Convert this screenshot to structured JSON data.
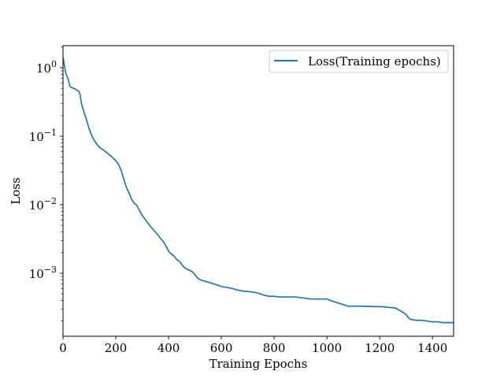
{
  "chart_data": {
    "type": "line",
    "title": "",
    "xlabel": "Training Epochs",
    "ylabel": "Loss",
    "xlim": [
      0,
      1480
    ],
    "ylim": [
      0.00012,
      2.1
    ],
    "yscale": "log",
    "grid": false,
    "legend_position": "top-right",
    "x_ticks": [
      {
        "value": 0,
        "label": "0"
      },
      {
        "value": 200,
        "label": "200"
      },
      {
        "value": 400,
        "label": "400"
      },
      {
        "value": 600,
        "label": "600"
      },
      {
        "value": 800,
        "label": "800"
      },
      {
        "value": 1000,
        "label": "1000"
      },
      {
        "value": 1200,
        "label": "1200"
      },
      {
        "value": 1400,
        "label": "1400"
      }
    ],
    "y_ticks": [
      {
        "value": 1,
        "base": "10",
        "exp": "0"
      },
      {
        "value": 0.1,
        "base": "10",
        "exp": "−1"
      },
      {
        "value": 0.01,
        "base": "10",
        "exp": "−2"
      },
      {
        "value": 0.001,
        "base": "10",
        "exp": "−3"
      }
    ],
    "series": [
      {
        "name": "Loss(Training epochs)",
        "color": "#1f77b4",
        "x": [
          0,
          5,
          10,
          15,
          20,
          25,
          30,
          40,
          50,
          60,
          65,
          70,
          80,
          90,
          100,
          110,
          120,
          130,
          140,
          150,
          160,
          170,
          180,
          190,
          200,
          210,
          220,
          230,
          240,
          250,
          260,
          270,
          280,
          290,
          300,
          310,
          320,
          330,
          340,
          350,
          360,
          370,
          380,
          390,
          400,
          410,
          420,
          430,
          440,
          450,
          460,
          470,
          480,
          490,
          500,
          510,
          520,
          530,
          540,
          550,
          560,
          570,
          580,
          590,
          600,
          620,
          640,
          660,
          680,
          700,
          720,
          740,
          760,
          780,
          800,
          820,
          840,
          860,
          880,
          900,
          920,
          940,
          960,
          980,
          1000,
          1020,
          1040,
          1060,
          1080,
          1100,
          1120,
          1140,
          1160,
          1180,
          1200,
          1220,
          1240,
          1260,
          1280,
          1300,
          1310,
          1320,
          1340,
          1360,
          1380,
          1400,
          1420,
          1440,
          1460,
          1480
        ],
        "y": [
          1.4,
          1.1,
          0.85,
          0.75,
          0.68,
          0.55,
          0.52,
          0.5,
          0.48,
          0.45,
          0.4,
          0.3,
          0.22,
          0.17,
          0.125,
          0.1,
          0.085,
          0.075,
          0.068,
          0.064,
          0.06,
          0.056,
          0.052,
          0.048,
          0.044,
          0.039,
          0.032,
          0.024,
          0.018,
          0.015,
          0.012,
          0.0105,
          0.0098,
          0.0082,
          0.007,
          0.0062,
          0.0055,
          0.0049,
          0.0044,
          0.004,
          0.0036,
          0.0032,
          0.0029,
          0.0025,
          0.0021,
          0.0019,
          0.0018,
          0.0016,
          0.0015,
          0.00135,
          0.0012,
          0.00115,
          0.0011,
          0.00105,
          0.00095,
          0.00085,
          0.0008,
          0.00078,
          0.00076,
          0.00074,
          0.00072,
          0.0007,
          0.00068,
          0.00066,
          0.00064,
          0.00062,
          0.0006,
          0.00057,
          0.00055,
          0.00054,
          0.00053,
          0.00051,
          0.00048,
          0.00046,
          0.00046,
          0.00045,
          0.00045,
          0.00045,
          0.00045,
          0.00044,
          0.00043,
          0.00042,
          0.00042,
          0.00042,
          0.00042,
          0.00039,
          0.00037,
          0.00035,
          0.00033,
          0.00033,
          0.00033,
          0.000328,
          0.000328,
          0.000325,
          0.000325,
          0.000322,
          0.000315,
          0.00031,
          0.00028,
          0.00025,
          0.00022,
          0.00021,
          0.000205,
          0.000205,
          0.0002,
          0.000195,
          0.000195,
          0.00019,
          0.00019,
          0.00019
        ]
      }
    ]
  }
}
